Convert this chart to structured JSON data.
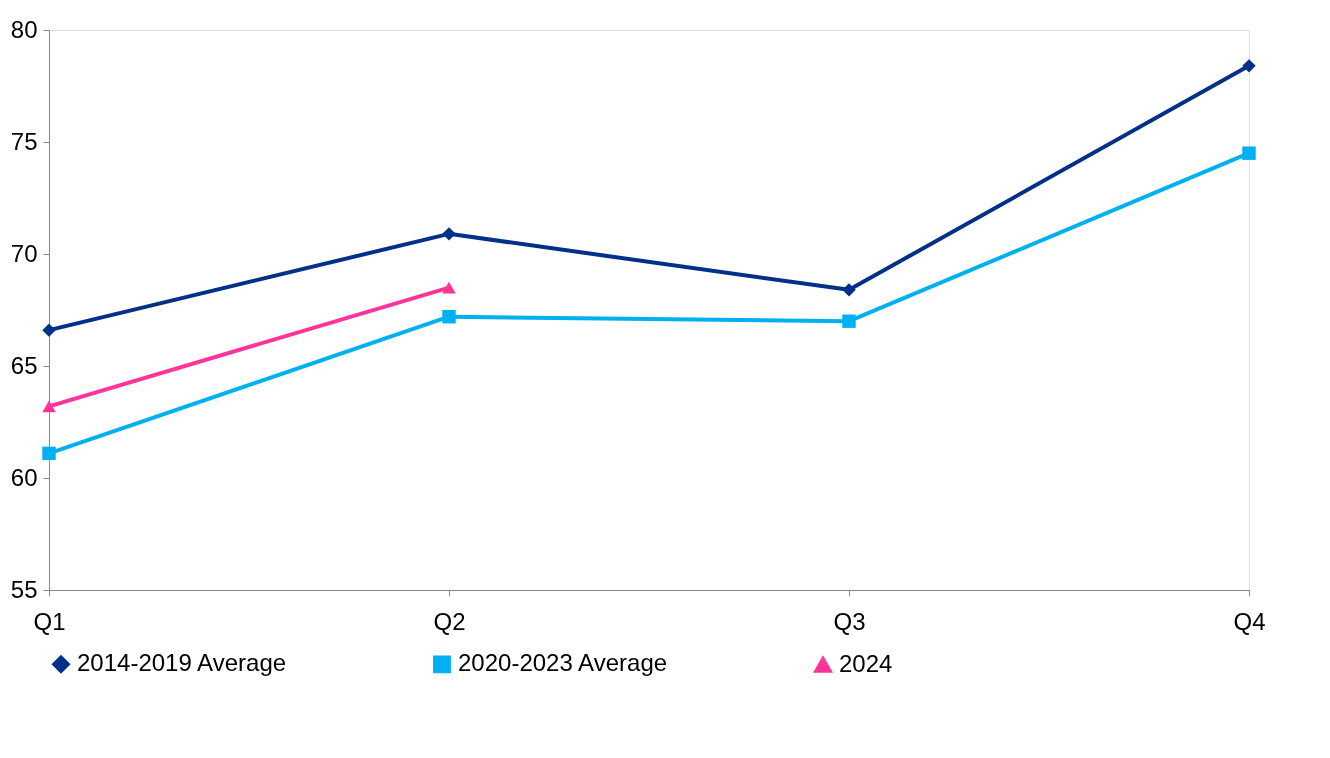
{
  "chart_data": {
    "type": "line",
    "categories": [
      "Q1",
      "Q2",
      "Q3",
      "Q4"
    ],
    "ylim": [
      55,
      80
    ],
    "yticks": [
      55,
      60,
      65,
      70,
      75,
      80
    ],
    "grid": false,
    "legend": "bottom",
    "line_style": "solid",
    "series": [
      {
        "name": "2014-2019 Average",
        "color": "#003087",
        "marker": "diamond",
        "values": [
          66.6,
          70.9,
          68.4,
          78.4
        ]
      },
      {
        "name": "2020-2023 Average",
        "color": "#00b0f0",
        "marker": "square",
        "values": [
          61.1,
          67.2,
          67.0,
          74.5
        ]
      },
      {
        "name": "2024",
        "color": "#ff3399",
        "marker": "triangle",
        "values": [
          63.2,
          68.5,
          null,
          null
        ]
      }
    ]
  }
}
